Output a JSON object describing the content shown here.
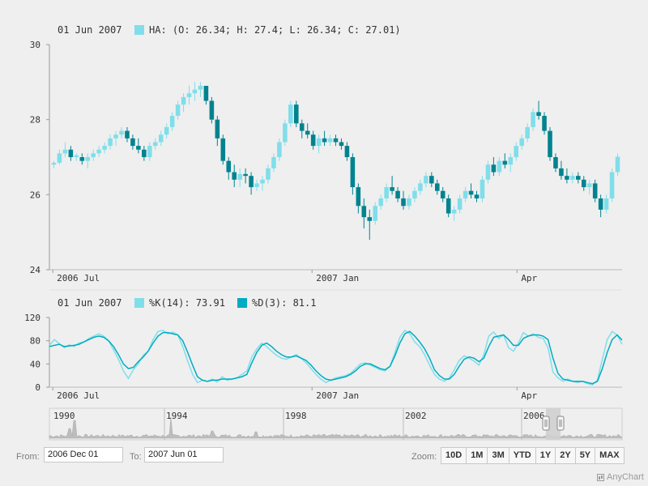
{
  "colors": {
    "rising": "#80deea",
    "falling": "#00838f",
    "k_line": "#80deea",
    "d_line": "#00acc1",
    "axis": "#999999",
    "grid": "#dcdcdc",
    "nav_area": "#bdbdbd"
  },
  "legend1": {
    "date": "01 Jun 2007",
    "text": "HA: (O: 26.34; H: 27.4; L: 26.34; C: 27.01)"
  },
  "legend2": {
    "date": "01 Jun 2007",
    "k_text": "%K(14): 73.91",
    "d_text": "%D(3): 81.1"
  },
  "chart_data": [
    {
      "type": "candlestick",
      "indicator": "Heikin-Ashi",
      "series": [
        {
          "name": "HA"
        }
      ],
      "y_ticks": [
        "24",
        "26",
        "28",
        "30"
      ],
      "ylim": [
        24,
        30
      ],
      "x_ticks": [
        "2006 Jul",
        "2007 Jan",
        "Apr"
      ],
      "x_tick_positions_days": [
        0,
        153,
        274
      ],
      "x_range_days": [
        -2,
        336
      ],
      "candles_note": "daily candles, approx 2006 Jul to 2007 Jun",
      "candles": [
        [
          26.8,
          26.9,
          26.7,
          26.85
        ],
        [
          26.85,
          27.2,
          26.8,
          27.1
        ],
        [
          27.1,
          27.4,
          27.0,
          27.2
        ],
        [
          27.2,
          27.3,
          26.9,
          27.0
        ],
        [
          27.0,
          27.1,
          26.9,
          27.05
        ],
        [
          27.0,
          27.1,
          26.8,
          26.9
        ],
        [
          26.9,
          27.1,
          26.7,
          27.0
        ],
        [
          27.0,
          27.2,
          26.9,
          27.1
        ],
        [
          27.1,
          27.3,
          27.0,
          27.2
        ],
        [
          27.2,
          27.4,
          27.1,
          27.3
        ],
        [
          27.3,
          27.6,
          27.2,
          27.5
        ],
        [
          27.5,
          27.7,
          27.3,
          27.6
        ],
        [
          27.6,
          27.8,
          27.5,
          27.7
        ],
        [
          27.7,
          27.8,
          27.4,
          27.5
        ],
        [
          27.5,
          27.6,
          27.2,
          27.3
        ],
        [
          27.3,
          27.5,
          27.1,
          27.2
        ],
        [
          27.2,
          27.3,
          26.9,
          27.0
        ],
        [
          27.0,
          27.4,
          26.9,
          27.3
        ],
        [
          27.3,
          27.5,
          27.2,
          27.4
        ],
        [
          27.4,
          27.7,
          27.3,
          27.6
        ],
        [
          27.6,
          27.9,
          27.5,
          27.8
        ],
        [
          27.8,
          28.2,
          27.7,
          28.1
        ],
        [
          28.1,
          28.5,
          28.0,
          28.4
        ],
        [
          28.4,
          28.7,
          28.2,
          28.6
        ],
        [
          28.6,
          28.9,
          28.4,
          28.7
        ],
        [
          28.7,
          29.0,
          28.5,
          28.8
        ],
        [
          28.8,
          29.0,
          28.6,
          28.9
        ],
        [
          28.9,
          28.9,
          28.4,
          28.5
        ],
        [
          28.5,
          28.6,
          27.9,
          28.0
        ],
        [
          28.0,
          28.1,
          27.3,
          27.5
        ],
        [
          27.5,
          27.6,
          26.8,
          26.9
        ],
        [
          26.9,
          27.0,
          26.4,
          26.6
        ],
        [
          26.6,
          26.8,
          26.2,
          26.4
        ],
        [
          26.4,
          26.7,
          26.2,
          26.55
        ],
        [
          26.55,
          26.7,
          26.3,
          26.5
        ],
        [
          26.5,
          26.6,
          26.0,
          26.2
        ],
        [
          26.2,
          26.4,
          26.1,
          26.3
        ],
        [
          26.3,
          26.5,
          26.1,
          26.4
        ],
        [
          26.4,
          26.8,
          26.3,
          26.7
        ],
        [
          26.7,
          27.1,
          26.6,
          27.0
        ],
        [
          27.0,
          27.5,
          26.9,
          27.4
        ],
        [
          27.4,
          28.0,
          27.3,
          27.9
        ],
        [
          27.9,
          28.5,
          27.8,
          28.4
        ],
        [
          28.4,
          28.5,
          27.8,
          27.9
        ],
        [
          27.9,
          28.0,
          27.5,
          27.7
        ],
        [
          27.7,
          27.9,
          27.5,
          27.6
        ],
        [
          27.6,
          27.7,
          27.2,
          27.3
        ],
        [
          27.3,
          27.6,
          27.1,
          27.5
        ],
        [
          27.5,
          27.7,
          27.3,
          27.4
        ],
        [
          27.4,
          27.6,
          27.3,
          27.5
        ],
        [
          27.5,
          27.6,
          27.3,
          27.4
        ],
        [
          27.4,
          27.5,
          27.2,
          27.3
        ],
        [
          27.3,
          27.4,
          26.9,
          27.0
        ],
        [
          27.0,
          27.1,
          26.0,
          26.2
        ],
        [
          26.2,
          26.3,
          25.5,
          25.7
        ],
        [
          25.7,
          25.9,
          25.1,
          25.4
        ],
        [
          25.4,
          25.6,
          24.8,
          25.3
        ],
        [
          25.3,
          25.8,
          25.2,
          25.7
        ],
        [
          25.7,
          26.0,
          25.6,
          25.9
        ],
        [
          25.9,
          26.3,
          25.8,
          26.2
        ],
        [
          26.2,
          26.5,
          26.0,
          26.1
        ],
        [
          26.1,
          26.2,
          25.8,
          25.9
        ],
        [
          25.9,
          26.1,
          25.6,
          25.7
        ],
        [
          25.7,
          26.0,
          25.6,
          25.9
        ],
        [
          25.9,
          26.2,
          25.8,
          26.1
        ],
        [
          26.1,
          26.4,
          26.0,
          26.3
        ],
        [
          26.3,
          26.6,
          26.2,
          26.5
        ],
        [
          26.5,
          26.6,
          26.2,
          26.3
        ],
        [
          26.3,
          26.4,
          26.0,
          26.1
        ],
        [
          26.1,
          26.2,
          25.8,
          25.9
        ],
        [
          25.9,
          26.0,
          25.4,
          25.5
        ],
        [
          25.5,
          25.7,
          25.3,
          25.6
        ],
        [
          25.6,
          26.0,
          25.5,
          25.9
        ],
        [
          25.9,
          26.2,
          25.8,
          26.1
        ],
        [
          26.1,
          26.3,
          25.9,
          26.0
        ],
        [
          26.0,
          26.1,
          25.8,
          25.9
        ],
        [
          25.9,
          26.5,
          25.8,
          26.4
        ],
        [
          26.4,
          26.9,
          26.3,
          26.8
        ],
        [
          26.8,
          27.0,
          26.5,
          26.6
        ],
        [
          26.6,
          27.0,
          26.5,
          26.9
        ],
        [
          26.9,
          27.1,
          26.7,
          26.8
        ],
        [
          26.8,
          27.1,
          26.6,
          27.0
        ],
        [
          27.0,
          27.4,
          26.9,
          27.3
        ],
        [
          27.3,
          27.6,
          27.2,
          27.5
        ],
        [
          27.5,
          27.9,
          27.4,
          27.8
        ],
        [
          27.8,
          28.3,
          27.7,
          28.2
        ],
        [
          28.2,
          28.5,
          28.0,
          28.1
        ],
        [
          28.1,
          28.2,
          27.6,
          27.7
        ],
        [
          27.7,
          27.8,
          26.9,
          27.0
        ],
        [
          27.0,
          27.1,
          26.6,
          26.7
        ],
        [
          26.7,
          26.9,
          26.4,
          26.5
        ],
        [
          26.5,
          26.7,
          26.3,
          26.4
        ],
        [
          26.4,
          26.6,
          26.3,
          26.5
        ],
        [
          26.5,
          26.6,
          26.3,
          26.4
        ],
        [
          26.4,
          26.5,
          26.1,
          26.2
        ],
        [
          26.2,
          26.4,
          26.0,
          26.3
        ],
        [
          26.3,
          26.4,
          25.8,
          25.9
        ],
        [
          25.9,
          26.0,
          25.4,
          25.6
        ],
        [
          25.6,
          26.0,
          25.5,
          25.9
        ],
        [
          25.9,
          26.7,
          25.8,
          26.6
        ],
        [
          26.6,
          27.1,
          26.5,
          27.01
        ]
      ]
    },
    {
      "type": "line",
      "indicator": "Stochastic",
      "y_ticks": [
        "0",
        "40",
        "80",
        "120"
      ],
      "ylim": [
        0,
        120
      ],
      "x_ticks": [
        "2006 Jul",
        "2007 Jan",
        "Apr"
      ],
      "series": [
        {
          "name": "%K(14)",
          "values": [
            72,
            82,
            75,
            68,
            73,
            70,
            76,
            78,
            84,
            88,
            92,
            88,
            80,
            64,
            48,
            28,
            15,
            30,
            40,
            55,
            62,
            82,
            96,
            98,
            92,
            95,
            90,
            70,
            45,
            22,
            8,
            12,
            10,
            14,
            9,
            18,
            12,
            14,
            16,
            22,
            28,
            52,
            66,
            76,
            70,
            62,
            55,
            50,
            48,
            52,
            56,
            50,
            42,
            32,
            22,
            14,
            8,
            12,
            16,
            18,
            20,
            24,
            32,
            40,
            42,
            38,
            34,
            30,
            28,
            36,
            60,
            86,
            98,
            92,
            78,
            70,
            56,
            38,
            22,
            14,
            10,
            16,
            30,
            46,
            54,
            50,
            45,
            38,
            56,
            88,
            95,
            84,
            90,
            68,
            62,
            76,
            94,
            88,
            92,
            86,
            84,
            68,
            26,
            16,
            10,
            14,
            10,
            8,
            10,
            6,
            4,
            12,
            48,
            82,
            96,
            90,
            73.91
          ]
        },
        {
          "name": "%D(3)",
          "values": [
            70,
            72,
            74,
            70,
            71,
            72,
            74,
            78,
            82,
            86,
            88,
            86,
            80,
            70,
            56,
            40,
            32,
            34,
            44,
            52,
            62,
            76,
            88,
            94,
            94,
            92,
            90,
            80,
            60,
            38,
            18,
            12,
            10,
            12,
            12,
            14,
            14,
            14,
            16,
            18,
            22,
            42,
            60,
            72,
            76,
            70,
            62,
            56,
            52,
            52,
            54,
            50,
            46,
            38,
            28,
            20,
            14,
            12,
            14,
            16,
            18,
            22,
            28,
            36,
            40,
            40,
            36,
            32,
            30,
            36,
            54,
            76,
            92,
            96,
            88,
            78,
            66,
            50,
            30,
            20,
            14,
            14,
            22,
            36,
            48,
            52,
            50,
            44,
            50,
            70,
            86,
            88,
            90,
            82,
            72,
            72,
            84,
            88,
            90,
            90,
            88,
            82,
            50,
            24,
            14,
            12,
            10,
            10,
            10,
            8,
            6,
            10,
            32,
            60,
            82,
            90,
            81.1
          ]
        }
      ]
    },
    {
      "type": "area",
      "role": "navigator scroller",
      "x_ticks": [
        "1990",
        "1994",
        "1998",
        "2002",
        "2006"
      ]
    }
  ],
  "controls": {
    "from_label": "From:",
    "from_value": "2006 Dec 01",
    "to_label": "To:",
    "to_value": "2007 Jun 01",
    "zoom_label": "Zoom:",
    "zoom_buttons": [
      "10D",
      "1M",
      "3M",
      "YTD",
      "1Y",
      "2Y",
      "5Y",
      "MAX"
    ]
  },
  "credits": {
    "text": "AnyChart"
  }
}
